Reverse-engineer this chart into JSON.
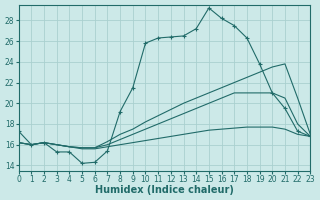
{
  "xlabel": "Humidex (Indice chaleur)",
  "xlim": [
    0,
    23
  ],
  "ylim": [
    13.5,
    29.5
  ],
  "yticks": [
    14,
    16,
    18,
    20,
    22,
    24,
    26,
    28
  ],
  "xticks": [
    0,
    1,
    2,
    3,
    4,
    5,
    6,
    7,
    8,
    9,
    10,
    11,
    12,
    13,
    14,
    15,
    16,
    17,
    18,
    19,
    20,
    21,
    22,
    23
  ],
  "bg_color": "#cce9e8",
  "grid_color": "#aad0cf",
  "line_color": "#216b69",
  "line1_x": [
    0,
    1,
    2,
    3,
    4,
    5,
    6,
    7,
    8,
    9,
    10,
    11,
    12,
    13,
    14,
    15,
    16,
    17,
    18,
    19,
    20,
    21,
    22,
    23
  ],
  "line1_y": [
    17.3,
    16.0,
    16.2,
    15.3,
    15.3,
    14.2,
    14.3,
    15.4,
    19.2,
    21.5,
    25.8,
    26.3,
    26.4,
    26.5,
    27.2,
    29.2,
    28.2,
    27.5,
    26.3,
    23.8,
    21.0,
    19.5,
    17.3,
    16.8
  ],
  "line2_x": [
    0,
    1,
    2,
    3,
    4,
    5,
    6,
    7,
    8,
    9,
    10,
    11,
    12,
    13,
    14,
    15,
    16,
    17,
    18,
    19,
    20,
    21,
    22,
    23
  ],
  "line2_y": [
    16.2,
    16.0,
    16.2,
    16.0,
    15.8,
    15.7,
    15.7,
    16.3,
    17.0,
    17.5,
    18.2,
    18.8,
    19.4,
    20.0,
    20.5,
    21.0,
    21.5,
    22.0,
    22.5,
    23.0,
    23.5,
    23.8,
    20.5,
    17.0
  ],
  "line3_x": [
    0,
    1,
    2,
    3,
    4,
    5,
    6,
    7,
    8,
    9,
    10,
    11,
    12,
    13,
    14,
    15,
    16,
    17,
    18,
    19,
    20,
    21,
    22,
    23
  ],
  "line3_y": [
    16.2,
    16.0,
    16.2,
    16.0,
    15.8,
    15.7,
    15.7,
    16.0,
    16.5,
    17.0,
    17.5,
    18.0,
    18.5,
    19.0,
    19.5,
    20.0,
    20.5,
    21.0,
    21.0,
    21.0,
    21.0,
    20.5,
    18.0,
    16.8
  ],
  "line4_x": [
    0,
    1,
    2,
    3,
    4,
    5,
    6,
    7,
    8,
    9,
    10,
    11,
    12,
    13,
    14,
    15,
    16,
    17,
    18,
    19,
    20,
    21,
    22,
    23
  ],
  "line4_y": [
    16.2,
    16.0,
    16.2,
    16.0,
    15.8,
    15.6,
    15.6,
    15.8,
    16.0,
    16.2,
    16.4,
    16.6,
    16.8,
    17.0,
    17.2,
    17.4,
    17.5,
    17.6,
    17.7,
    17.7,
    17.7,
    17.5,
    17.0,
    16.8
  ]
}
